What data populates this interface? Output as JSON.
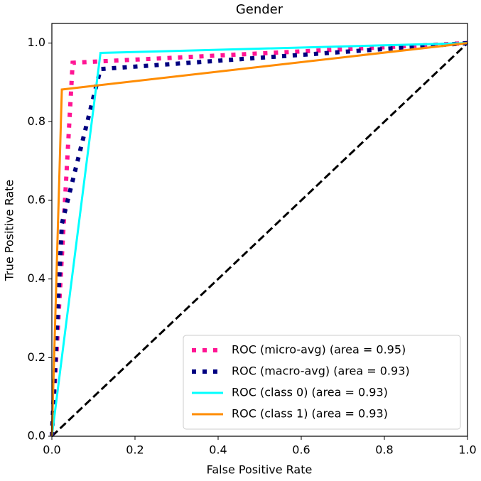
{
  "chart_data": {
    "type": "line",
    "title": "Gender",
    "x_label": "False Positive Rate",
    "y_label": "True Positive Rate",
    "xlim": [
      0,
      1
    ],
    "ylim": [
      0,
      1.05
    ],
    "xticks": [
      {
        "value": 0,
        "label": "0.0"
      },
      0.2,
      0.4,
      0.6,
      0.8,
      {
        "value": 1,
        "label": "1.0"
      }
    ],
    "yticks": [
      {
        "value": 0,
        "label": "0.0"
      },
      0.2,
      0.4,
      0.6,
      0.8,
      {
        "value": 1,
        "label": "1.0"
      }
    ],
    "legend": "lower right",
    "series": [
      {
        "name": "ROC (micro-avg) (area = 0.95)",
        "color": "#ff1493",
        "style": "dotted",
        "x": [
          0,
          0.05,
          1
        ],
        "values": [
          0,
          0.95,
          1
        ]
      },
      {
        "name": "ROC (macro-avg) (area = 0.93)",
        "color": "#000080",
        "style": "dotted",
        "x": [
          0,
          0.024,
          0.117,
          1
        ],
        "values": [
          0,
          0.54,
          0.934,
          1
        ]
      },
      {
        "name": "ROC (class 0) (area = 0.93)",
        "color": "#00ffff",
        "style": "solid",
        "x": [
          0,
          0.117,
          1
        ],
        "values": [
          0,
          0.975,
          1
        ]
      },
      {
        "name": "ROC (class 1) (area = 0.93)",
        "color": "#ff8c00",
        "style": "solid",
        "x": [
          0,
          0.024,
          1
        ],
        "values": [
          0,
          0.882,
          1
        ]
      }
    ]
  }
}
